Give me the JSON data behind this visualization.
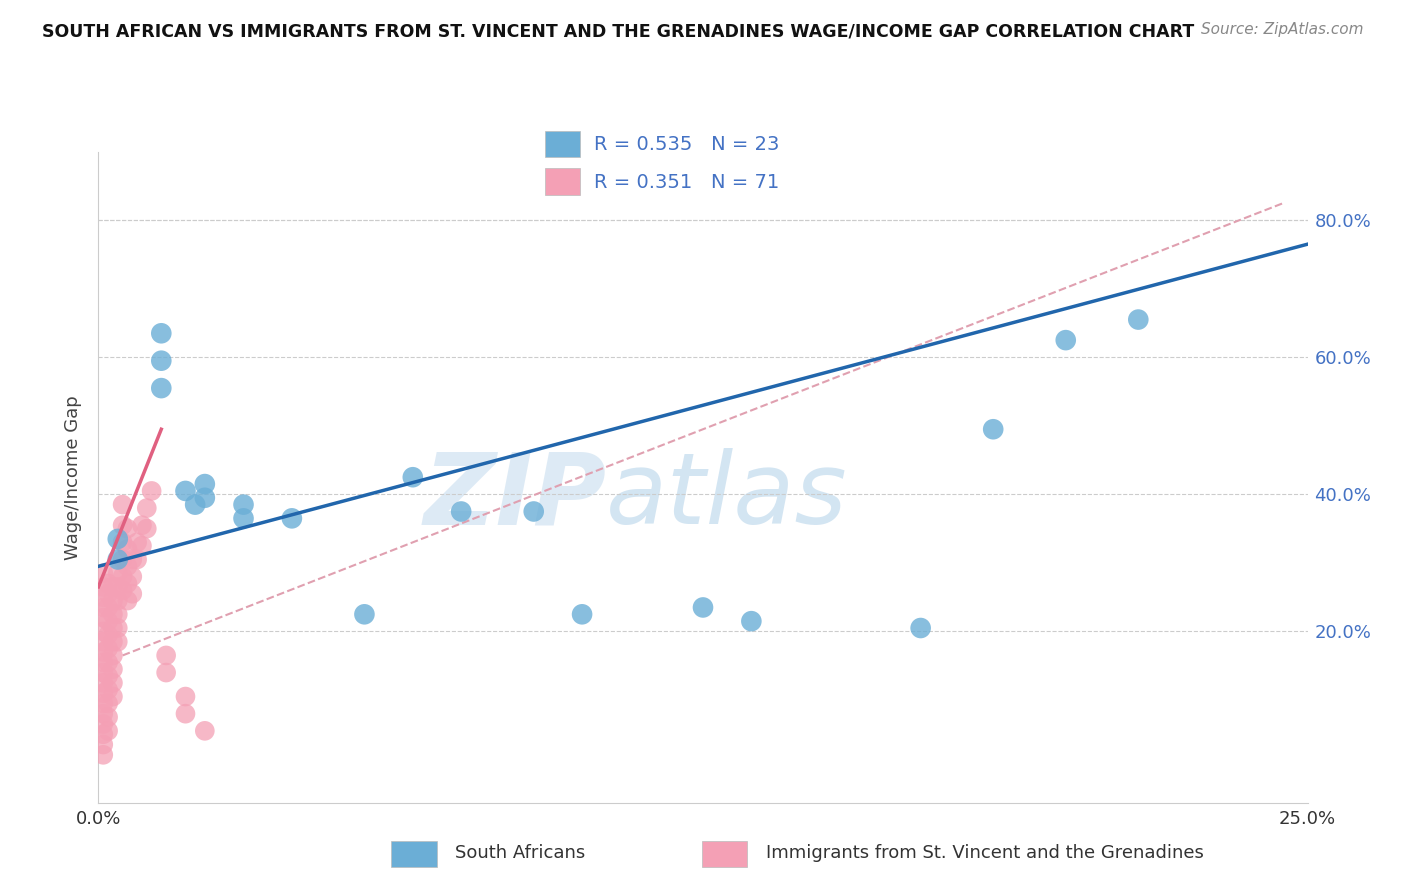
{
  "title": "SOUTH AFRICAN VS IMMIGRANTS FROM ST. VINCENT AND THE GRENADINES WAGE/INCOME GAP CORRELATION CHART",
  "source": "Source: ZipAtlas.com",
  "ylabel": "Wage/Income Gap",
  "xlim": [
    0.0,
    0.25
  ],
  "ylim": [
    -0.05,
    0.9
  ],
  "xtick_positions": [
    0.0,
    0.05,
    0.1,
    0.15,
    0.2,
    0.25
  ],
  "xtick_labels": [
    "0.0%",
    "",
    "",
    "",
    "",
    "25.0%"
  ],
  "ytick_positions": [
    0.2,
    0.4,
    0.6,
    0.8
  ],
  "ytick_labels": [
    "20.0%",
    "40.0%",
    "60.0%",
    "80.0%"
  ],
  "blue_color": "#6baed6",
  "pink_color": "#f4a0b5",
  "blue_line_color": "#2166ac",
  "pink_line_color": "#e06080",
  "dashed_line_color": "#e0a0b0",
  "grid_color": "#cccccc",
  "R_blue": 0.535,
  "N_blue": 23,
  "R_pink": 0.351,
  "N_pink": 71,
  "legend_label_blue": "South Africans",
  "legend_label_pink": "Immigrants from St. Vincent and the Grenadines",
  "watermark_zip": "ZIP",
  "watermark_atlas": "atlas",
  "blue_scatter": [
    [
      0.004,
      0.335
    ],
    [
      0.004,
      0.305
    ],
    [
      0.013,
      0.635
    ],
    [
      0.013,
      0.595
    ],
    [
      0.013,
      0.555
    ],
    [
      0.018,
      0.405
    ],
    [
      0.02,
      0.385
    ],
    [
      0.022,
      0.415
    ],
    [
      0.022,
      0.395
    ],
    [
      0.03,
      0.385
    ],
    [
      0.03,
      0.365
    ],
    [
      0.04,
      0.365
    ],
    [
      0.055,
      0.225
    ],
    [
      0.065,
      0.425
    ],
    [
      0.075,
      0.375
    ],
    [
      0.09,
      0.375
    ],
    [
      0.1,
      0.225
    ],
    [
      0.125,
      0.235
    ],
    [
      0.135,
      0.215
    ],
    [
      0.17,
      0.205
    ],
    [
      0.185,
      0.495
    ],
    [
      0.2,
      0.625
    ],
    [
      0.215,
      0.655
    ]
  ],
  "pink_scatter": [
    [
      0.001,
      0.285
    ],
    [
      0.001,
      0.265
    ],
    [
      0.001,
      0.25
    ],
    [
      0.001,
      0.235
    ],
    [
      0.001,
      0.22
    ],
    [
      0.001,
      0.2
    ],
    [
      0.001,
      0.185
    ],
    [
      0.001,
      0.17
    ],
    [
      0.001,
      0.155
    ],
    [
      0.001,
      0.14
    ],
    [
      0.001,
      0.125
    ],
    [
      0.001,
      0.11
    ],
    [
      0.001,
      0.095
    ],
    [
      0.001,
      0.08
    ],
    [
      0.001,
      0.065
    ],
    [
      0.001,
      0.05
    ],
    [
      0.001,
      0.035
    ],
    [
      0.001,
      0.02
    ],
    [
      0.002,
      0.27
    ],
    [
      0.002,
      0.255
    ],
    [
      0.002,
      0.235
    ],
    [
      0.002,
      0.215
    ],
    [
      0.002,
      0.195
    ],
    [
      0.002,
      0.175
    ],
    [
      0.002,
      0.155
    ],
    [
      0.002,
      0.135
    ],
    [
      0.002,
      0.115
    ],
    [
      0.002,
      0.095
    ],
    [
      0.002,
      0.075
    ],
    [
      0.002,
      0.055
    ],
    [
      0.003,
      0.265
    ],
    [
      0.003,
      0.245
    ],
    [
      0.003,
      0.225
    ],
    [
      0.003,
      0.205
    ],
    [
      0.003,
      0.185
    ],
    [
      0.003,
      0.165
    ],
    [
      0.003,
      0.145
    ],
    [
      0.003,
      0.125
    ],
    [
      0.003,
      0.105
    ],
    [
      0.004,
      0.285
    ],
    [
      0.004,
      0.265
    ],
    [
      0.004,
      0.245
    ],
    [
      0.004,
      0.225
    ],
    [
      0.004,
      0.205
    ],
    [
      0.004,
      0.185
    ],
    [
      0.005,
      0.385
    ],
    [
      0.005,
      0.355
    ],
    [
      0.005,
      0.33
    ],
    [
      0.005,
      0.305
    ],
    [
      0.005,
      0.28
    ],
    [
      0.005,
      0.26
    ],
    [
      0.006,
      0.35
    ],
    [
      0.006,
      0.32
    ],
    [
      0.006,
      0.295
    ],
    [
      0.006,
      0.27
    ],
    [
      0.006,
      0.245
    ],
    [
      0.007,
      0.305
    ],
    [
      0.007,
      0.28
    ],
    [
      0.007,
      0.255
    ],
    [
      0.008,
      0.33
    ],
    [
      0.008,
      0.305
    ],
    [
      0.009,
      0.355
    ],
    [
      0.009,
      0.325
    ],
    [
      0.01,
      0.38
    ],
    [
      0.01,
      0.35
    ],
    [
      0.011,
      0.405
    ],
    [
      0.014,
      0.165
    ],
    [
      0.014,
      0.14
    ],
    [
      0.018,
      0.105
    ],
    [
      0.018,
      0.08
    ],
    [
      0.022,
      0.055
    ]
  ],
  "blue_line": {
    "x0": 0.0,
    "x1": 0.25,
    "y0": 0.295,
    "y1": 0.765
  },
  "pink_line": {
    "x0": 0.0,
    "x1": 0.013,
    "y0": 0.265,
    "y1": 0.495
  },
  "dashed_line": {
    "x0": 0.005,
    "x1": 0.245,
    "y0": 0.165,
    "y1": 0.825
  }
}
